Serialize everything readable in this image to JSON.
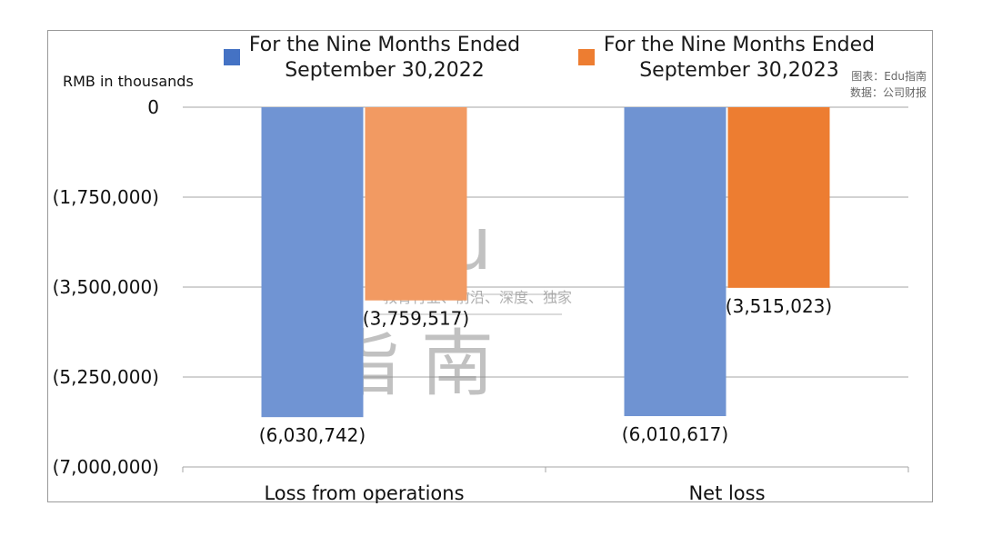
{
  "chart_data": {
    "type": "bar",
    "unit_label": "RMB in thousands",
    "categories": [
      "Loss from operations",
      "Net loss"
    ],
    "series": [
      {
        "name_line1": "For the Nine Months Ended",
        "name_line2": "September 30,2022",
        "values": [
          -6030742,
          -6010617
        ],
        "labels": [
          "(6,030,742)",
          "(6,010,617)"
        ],
        "colors": [
          "#7094d3",
          "#6f93d2"
        ],
        "legend_color": "#4472c4"
      },
      {
        "name_line1": "For the Nine Months Ended",
        "name_line2": "September 30,2023",
        "values": [
          -3759517,
          -3515023
        ],
        "labels": [
          "(3,759,517)",
          "(3,515,023)"
        ],
        "colors": [
          "#f29a62",
          "#ed7d31"
        ],
        "legend_color": "#ed7d31"
      }
    ],
    "ylim": [
      -7000000,
      0
    ],
    "yticks": [
      {
        "value": 0,
        "label": "0"
      },
      {
        "value": -1750000,
        "label": "(1,750,000)"
      },
      {
        "value": -3500000,
        "label": "(3,500,000)"
      },
      {
        "value": -5250000,
        "label": "(5,250,000)"
      },
      {
        "value": -7000000,
        "label": "(7,000,000)"
      }
    ],
    "grid": true,
    "legend_position": "top"
  },
  "source": {
    "line1": "图表：Edu指南",
    "line2": "数据：公司财报"
  },
  "watermark": {
    "top": "Edu",
    "slogan": "教育行业、前沿、深度、独家",
    "bottom": "指南"
  }
}
